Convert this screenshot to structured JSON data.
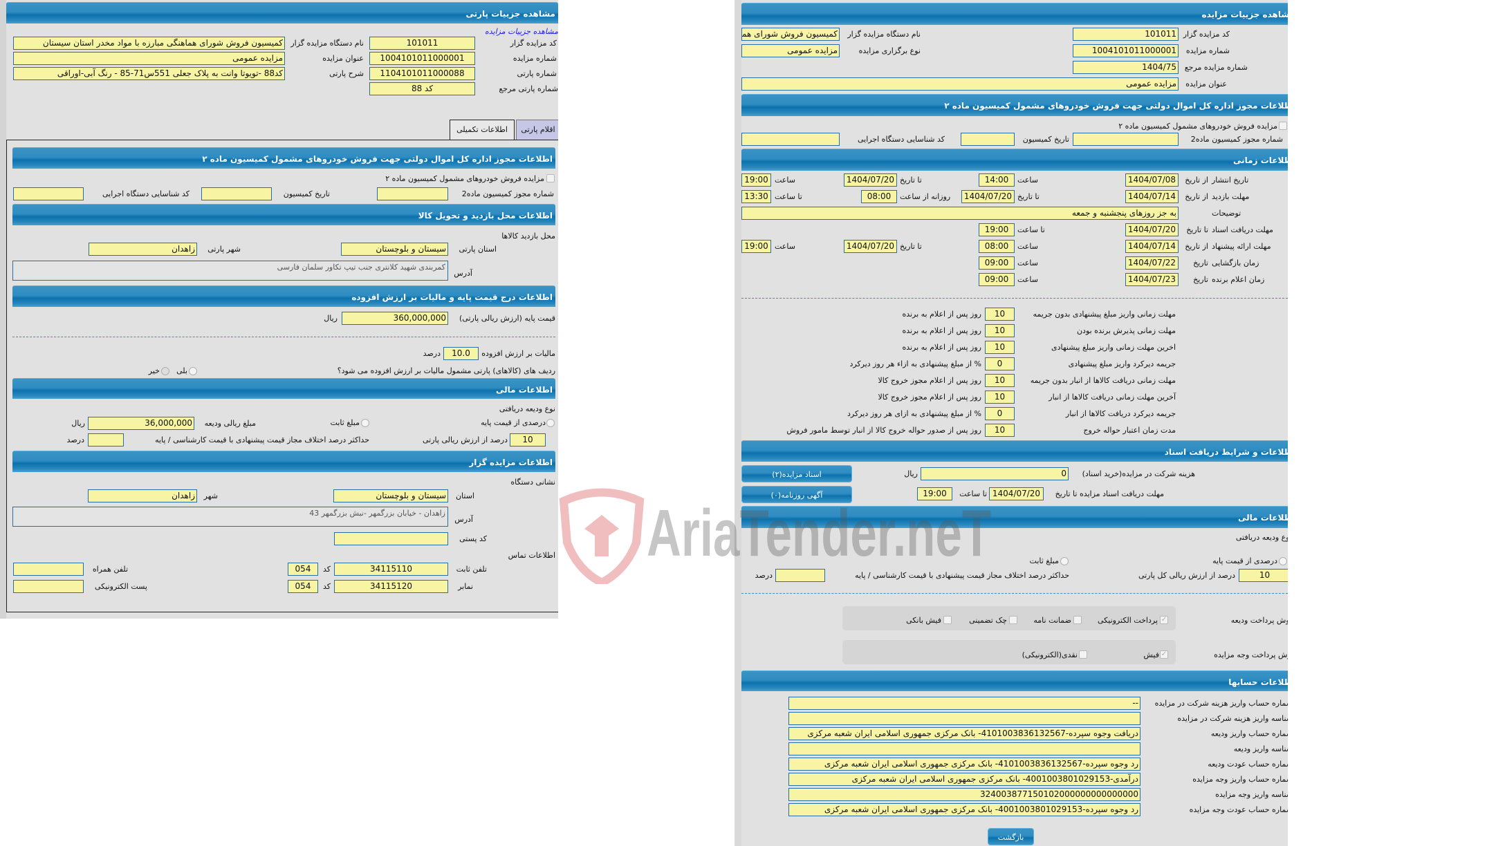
{
  "left": {
    "title": "مشاهده جزییات پارتی",
    "link_auction_details": "مشاهده جزییات مزایده",
    "auctioneer_code_label": "کد مزایده گزار",
    "auctioneer_code": "101011",
    "auctioneer_name_label": "نام دستگاه مزایده گزار",
    "auctioneer_name": "کمیسیون فروش شورای هماهنگی مبارزه با مواد مخدر استان سیستان",
    "auction_no_label": "شماره مزایده",
    "auction_no": "1004101011000001",
    "auction_title_label": "عنوان مزایده",
    "auction_title": "مزایده عمومی",
    "lot_no_label": "شماره پارتی",
    "lot_no": "1104101011000088",
    "lot_desc_label": "شرح پارتی",
    "lot_desc": "کد88 -تویوتا وانت به پلاک جعلی 551س71-85 - رنگ آبی-اوراقی",
    "lot_ref_label": "شماره پارتی مرجع",
    "lot_ref": "کد 88",
    "tabs": [
      {
        "label": "اطلاعات تکمیلی",
        "active": true
      },
      {
        "label": "اقلام پارتی",
        "active": false
      }
    ],
    "permit": {
      "title": "اطلاعات مجوز اداره کل اموال دولتی جهت فروش خودروهای مشمول کمیسیون ماده ۲",
      "checkbox_label": "مزایده فروش خودروهای مشمول کمیسیون ماده ۲",
      "permit_no_label": "شماره مجوز کمیسیون ماده2",
      "permit_no": "",
      "commission_date_label": "تاریخ کمیسیون",
      "commission_date": "",
      "exec_id_label": "کد شناسایی دستگاه اجرایی",
      "exec_id": ""
    },
    "visit": {
      "title": "اطلاعات محل بازدید و تحویل کالا",
      "place_label": "محل بازدید کالاها",
      "province_label": "استان پارتی",
      "province": "سیستان و بلوچستان",
      "city_label": "شهر پارتی",
      "city": "زاهدان",
      "address_label": "آدرس",
      "address": "کمربندی شهید کلانتری جنب تیپ تکاور سلمان فارسی"
    },
    "price": {
      "title": "اطلاعات درج قیمت پایه و مالیات بر ارزش افزوده",
      "base_label": "قیمت پایه (ارزش ریالی پارتی)",
      "base": "360,000,000",
      "rial": "ریال",
      "vat_label": "مالیات بر ارزش افزوده",
      "vat": "10.0",
      "percent": "درصد",
      "vat_question": "ردیف های (کالاهای) پارتی مشمول مالیات بر ارزش افزوده می شود؟",
      "yes": "بلی",
      "no": "خیر"
    },
    "finance": {
      "title": "اطلاعات مالی",
      "deposit_type_label": "نوع ودیعه دریافتی",
      "opt_percent": "درصدی از قیمت پایه",
      "opt_fixed": "مبلغ ثابت",
      "deposit_amount_label": "مبلغ ریالی ودیعه",
      "deposit_amount": "36,000,000",
      "rial": "ریال",
      "percent_value": "10",
      "percent_label": "درصد از ارزش ریالی پارتی",
      "max_diff_label": "حداکثر درصد اختلاف مجاز قیمت پیشنهادی با قیمت کارشناسی / پایه",
      "max_diff": "",
      "percent": "درصد"
    },
    "auctioneer": {
      "title": "اطلاعات مزایده گزار",
      "address_section": "نشانی دستگاه",
      "province_label": "استان",
      "province": "سیستان و بلوچستان",
      "city_label": "شهر",
      "city": "زاهدان",
      "address_label": "آدرس",
      "address": "زاهدان - خیابان بزرگمهر -نبش بزرگمهر 43",
      "postal_label": "کد پستی",
      "postal": "",
      "contact_section": "اطلاعات تماس",
      "phone_label": "تلفن ثابت",
      "phone": "34115110",
      "code_label": "کد",
      "phone_code": "054",
      "mobile_label": "تلفن همراه",
      "mobile": "",
      "fax_label": "نمابر",
      "fax": "34115120",
      "fax_code": "054",
      "email_label": "پست الکترونیکی",
      "email": ""
    }
  },
  "right": {
    "title": "مشاهده جزییات مزایده",
    "auctioneer_code_label": "کد مزایده گزار",
    "auctioneer_code": "101011",
    "auctioneer_name_label": "نام دستگاه مزایده گزار",
    "auctioneer_name": "کمیسیون فروش شورای هماهنگی مبارزه با مواد مخدر استان سیستان",
    "auction_no_label": "شماره مزایده",
    "auction_no": "1004101011000001",
    "auction_type_label": "نوع برگزاری مزایده",
    "auction_type": "مزایده عمومی",
    "auction_ref_label": "شماره مزایده مرجع",
    "auction_ref": "1404/75",
    "auction_title_label": "عنوان مزایده",
    "auction_title": "مزایده عمومی",
    "permit": {
      "title": "اطلاعات مجوز اداره کل اموال دولتی جهت فروش خودروهای مشمول کمیسیون ماده ۲",
      "checkbox_label": "مزایده فروش خودروهای مشمول کمیسیون ماده ۲",
      "permit_no_label": "شماره مجوز کمیسیون ماده2",
      "permit_no": "",
      "commission_date_label": "تاریخ کمیسیون",
      "commission_date": "",
      "exec_id_label": "کد شناسایی دستگاه اجرایی",
      "exec_id": ""
    },
    "timing": {
      "title": "اطلاعات زمانی",
      "from_date": "از تاریخ",
      "to_date": "تا تاریخ",
      "date": "تاریخ",
      "time": "ساعت",
      "to_time": "تا ساعت",
      "daily_from": "روزانه از ساعت",
      "publish_label": "تاریخ انتشار",
      "publish_from": "1404/07/08",
      "publish_from_time": "14:00",
      "publish_to": "1404/07/20",
      "publish_to_time": "19:00",
      "visit_label": "مهلت بازدید",
      "visit_from": "1404/07/14",
      "visit_to": "1404/07/20",
      "visit_daily_from": "08:00",
      "visit_daily_to": "13:30",
      "notes_label": "توضیحات",
      "notes": "به جز روزهای پنجشنبه و جمعه",
      "docs_label": "مهلت دریافت اسناد",
      "docs_to": "1404/07/20",
      "docs_to_time": "19:00",
      "offer_label": "مهلت ارائه پیشنهاد",
      "offer_from": "1404/07/14",
      "offer_from_time": "08:00",
      "offer_to": "1404/07/20",
      "offer_to_time": "19:00",
      "opening_label": "زمان بازگشایی",
      "opening_date": "1404/07/22",
      "opening_time": "09:00",
      "winner_label": "زمان اعلام برنده",
      "winner_date": "1404/07/23",
      "winner_time": "09:00"
    },
    "deadlines": [
      {
        "label": "مهلت زمانی واریز مبلغ پیشنهادی بدون جریمه",
        "value": "10",
        "suffix": "روز پس از اعلام به برنده"
      },
      {
        "label": "مهلت زمانی پذیرش برنده بودن",
        "value": "10",
        "suffix": "روز پس از اعلام به برنده"
      },
      {
        "label": "اخرین مهلت زمانی واریز مبلغ پیشنهادی",
        "value": "10",
        "suffix": "روز پس از اعلام به برنده"
      },
      {
        "label": "جریمه دیرکرد واریز مبلغ پیشنهادی",
        "value": "0",
        "suffix": "% از مبلغ پیشنهادی به ازاء هر روز دیرکرد"
      },
      {
        "label": "مهلت زمانی دریافت کالاها از انبار بدون جریمه",
        "value": "10",
        "suffix": "روز پس از اعلام مجوز خروج کالا"
      },
      {
        "label": "آخرین مهلت زمانی دریافت کالاها از انبار",
        "value": "10",
        "suffix": "روز پس از اعلام مجوز خروج کالا"
      },
      {
        "label": "جریمه دیرکرد دریافت کالاها از انبار",
        "value": "0",
        "suffix": "% از مبلغ پیشنهادی به ازای هر روز دیرکرد"
      },
      {
        "label": "مدت زمان اعتبار حواله خروج",
        "value": "10",
        "suffix": "روز پس از صدور حواله خروج کالا از انبار توسط مامور فروش"
      }
    ],
    "docs": {
      "title": "اطلاعات و شرایط دریافت اسناد",
      "fee_label": "هزینه شرکت در مزایده(خرید اسناد)",
      "fee": "0",
      "rial": "ریال",
      "deadline_label": "مهلت دریافت اسناد مزایده تا تاریخ",
      "deadline_date": "1404/07/20",
      "to_time": "تا ساعت",
      "deadline_time": "19:00",
      "docs_button": "اسناد مزایده(۲)",
      "ads_button": "آگهی روزنامه(۰)"
    },
    "finance": {
      "title": "اطلاعات مالی",
      "deposit_type_label": "نوع ودیعه دریافتی",
      "opt_percent": "درصدی از قیمت پایه",
      "opt_fixed": "مبلغ ثابت",
      "percent_value": "10",
      "percent_label": "درصد از ارزش ریالی کل پارتی",
      "max_diff_label": "حداکثر درصد اختلاف مجاز قیمت پیشنهادی با قیمت کارشناسی / پایه",
      "max_diff": "",
      "percent": "درصد",
      "deposit_method_label": "روش پرداخت ودیعه",
      "deposit_methods": [
        {
          "label": "پرداخت الکترونیکی",
          "checked": true
        },
        {
          "label": "ضمانت نامه",
          "checked": false
        },
        {
          "label": "چک تضمینی",
          "checked": false
        },
        {
          "label": "فیش بانکی",
          "checked": false
        }
      ],
      "payment_method_label": "روش پرداخت وجه مزایده",
      "payment_methods": [
        {
          "label": "فیش",
          "checked": true
        },
        {
          "label": "نقدی(الکترونیکی)",
          "checked": false
        }
      ]
    },
    "accounts": {
      "title": "اطلاعات حسابها",
      "rows": [
        {
          "label": "شماره حساب واریز هزینه شرکت در مزایده",
          "value": "--"
        },
        {
          "label": "شناسه واریز هزینه شرکت در مزایده",
          "value": ""
        },
        {
          "label": "شماره حساب واریز ودیعه",
          "value": "دریافت وجوه سپرده-4101003836132567- بانک مرکزی جمهوری اسلامی ایران شعبه مرکزی"
        },
        {
          "label": "شناسه واریز ودیعه",
          "value": ""
        },
        {
          "label": "شماره حساب عودت ودیعه",
          "value": "رد وجوه سپرده-4101003836132567- بانک مرکزی جمهوری اسلامی ایران شعبه مرکزی"
        },
        {
          "label": "شماره حساب واریز وجه مزایده",
          "value": "درآمدی-4001003801029153- بانک مرکزی جمهوری اسلامی ایران شعبه مرکزی"
        },
        {
          "label": "شناسه واریز وجه مزایده",
          "value": "324003877150102000000000000000"
        },
        {
          "label": "شماره حساب عودت وجه مزایده",
          "value": "رد وجوه سپرده-4001003801029153- بانک مرکزی جمهوری اسلامی ایران شعبه مرکزی"
        }
      ],
      "back_button": "بازگشت"
    }
  },
  "watermark": {
    "text": "AriaTender.neT",
    "icon": "shield-logo-icon"
  },
  "colors": {
    "header": "#2f8cc1",
    "field_bg": "#f7f4a3",
    "field_border": "#2a6ca5",
    "panel_bg": "#e1e1e1",
    "link": "#1a1aee"
  }
}
